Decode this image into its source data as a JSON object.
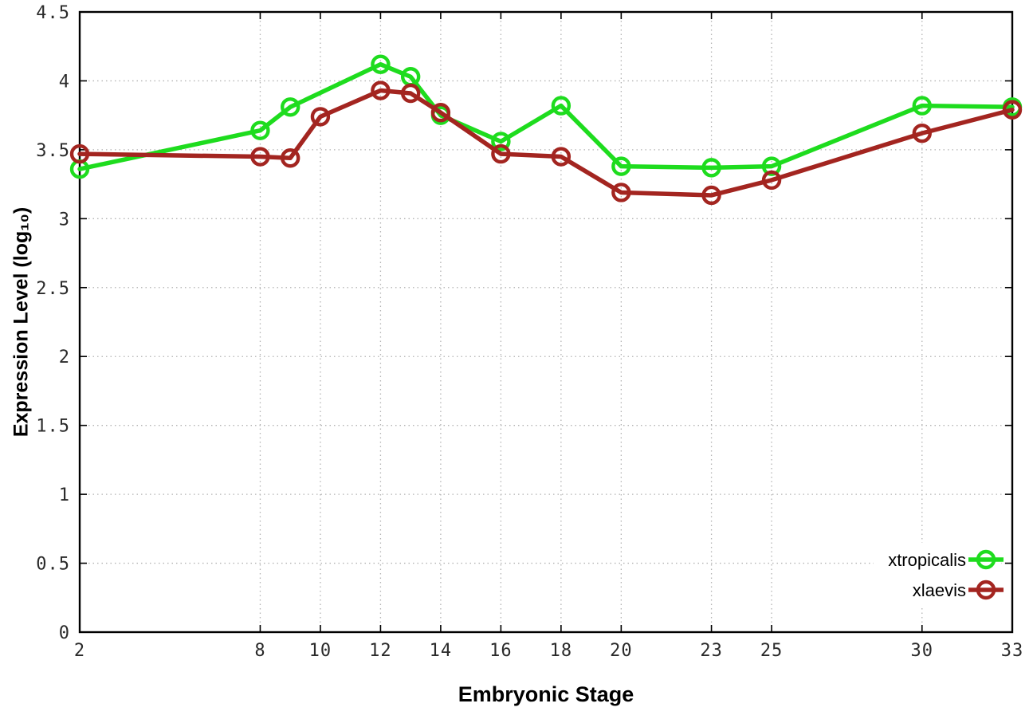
{
  "figure": {
    "background": "#ffffff",
    "border_color": "#000000",
    "grid_color": "#b3b3b3",
    "tick_label_color": "#2a2a2a"
  },
  "chart_data": {
    "type": "line",
    "title": "",
    "xlabel": "Embryonic Stage",
    "ylabel": "Expression Level (log₁₀)",
    "xlim": [
      2,
      33
    ],
    "ylim": [
      0,
      4.5
    ],
    "x_ticks": [
      2,
      8,
      10,
      12,
      14,
      16,
      18,
      20,
      23,
      25,
      30,
      33
    ],
    "y_ticks": [
      0,
      0.5,
      1,
      1.5,
      2,
      2.5,
      3,
      3.5,
      4,
      4.5
    ],
    "grid": true,
    "legend_position": "bottom-right-inside",
    "series": [
      {
        "name": "xtropicalis",
        "color": "#1edc1e",
        "marker": "open-circle",
        "points": [
          [
            2,
            3.36
          ],
          [
            8,
            3.64
          ],
          [
            9,
            3.81
          ],
          [
            12,
            4.12
          ],
          [
            13,
            4.03
          ],
          [
            14,
            3.75
          ],
          [
            16,
            3.56
          ],
          [
            18,
            3.82
          ],
          [
            20,
            3.38
          ],
          [
            23,
            3.37
          ],
          [
            25,
            3.38
          ],
          [
            30,
            3.82
          ],
          [
            33,
            3.81
          ]
        ]
      },
      {
        "name": "xlaevis",
        "color": "#a32520",
        "marker": "open-circle",
        "points": [
          [
            2,
            3.47
          ],
          [
            8,
            3.45
          ],
          [
            9,
            3.44
          ],
          [
            10,
            3.74
          ],
          [
            12,
            3.93
          ],
          [
            13,
            3.91
          ],
          [
            14,
            3.77
          ],
          [
            16,
            3.47
          ],
          [
            18,
            3.45
          ],
          [
            20,
            3.19
          ],
          [
            23,
            3.17
          ],
          [
            25,
            3.28
          ],
          [
            30,
            3.62
          ],
          [
            33,
            3.79
          ]
        ]
      }
    ]
  }
}
